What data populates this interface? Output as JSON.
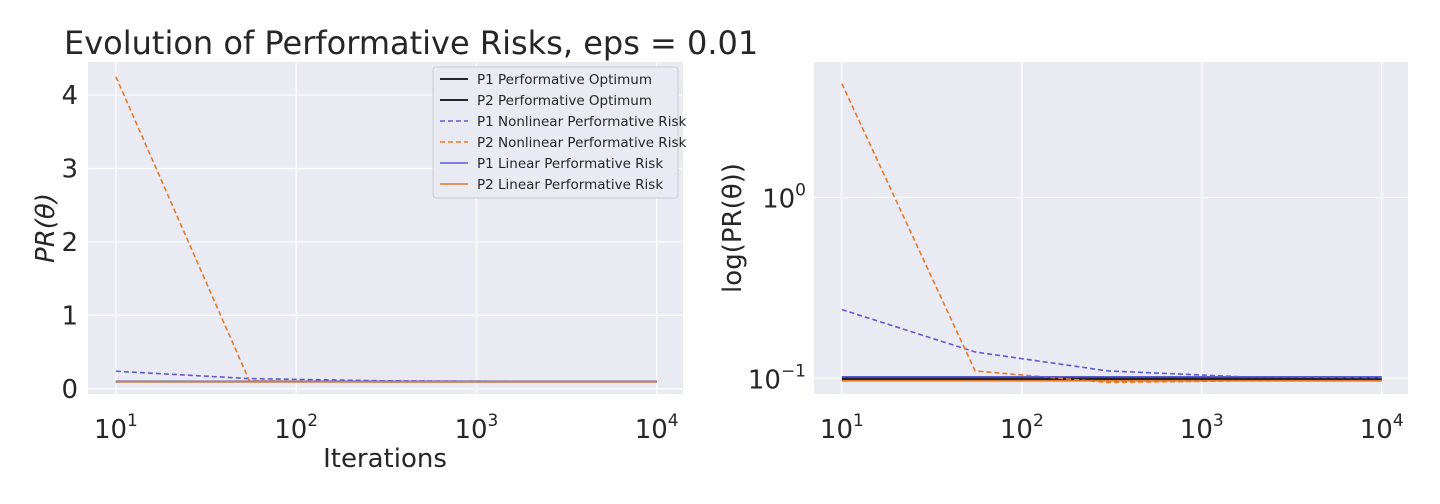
{
  "colors": {
    "optimum": "#262626",
    "p1": "#5b5bd6",
    "p2": "#e07b2e",
    "axes_bg": "#eaeaf2",
    "grid": "#ffffff"
  },
  "chart_data": [
    {
      "type": "line",
      "title": "Evolution of Performative Risks, eps = 0.01",
      "xlabel": "Iterations",
      "ylabel": "PR(θ)",
      "xscale": "log",
      "yscale": "linear",
      "xlim": [
        7,
        14000
      ],
      "ylim": [
        -0.07,
        4.45
      ],
      "xticks": [
        {
          "value": 10,
          "base": "10",
          "exp": "1"
        },
        {
          "value": 100,
          "base": "10",
          "exp": "2"
        },
        {
          "value": 1000,
          "base": "10",
          "exp": "3"
        },
        {
          "value": 10000,
          "base": "10",
          "exp": "4"
        }
      ],
      "yticks": [
        {
          "value": 0,
          "label": "0"
        },
        {
          "value": 1,
          "label": "1"
        },
        {
          "value": 2,
          "label": "2"
        },
        {
          "value": 3,
          "label": "3"
        },
        {
          "value": 4,
          "label": "4"
        }
      ],
      "grid": true,
      "legend_position": "top-right",
      "x": [
        10,
        55,
        300,
        1700,
        10000
      ],
      "series": [
        {
          "name": "P1 Performative Optimum",
          "style": "solid",
          "color_key": "optimum",
          "values": [
            0.1,
            0.1,
            0.1,
            0.1,
            0.1
          ]
        },
        {
          "name": "P2 Performative Optimum",
          "style": "solid",
          "color_key": "optimum",
          "values": [
            0.098,
            0.098,
            0.098,
            0.098,
            0.098
          ]
        },
        {
          "name": "P1 Nonlinear Performative Risk",
          "style": "dashed",
          "color_key": "p1",
          "values": [
            0.24,
            0.14,
            0.11,
            0.102,
            0.101
          ]
        },
        {
          "name": "P2 Nonlinear Performative Risk",
          "style": "dashed",
          "color_key": "p2",
          "values": [
            4.25,
            0.11,
            0.095,
            0.097,
            0.097
          ]
        },
        {
          "name": "P1 Linear Performative Risk",
          "style": "solid",
          "color_key": "p1",
          "values": [
            0.102,
            0.102,
            0.102,
            0.102,
            0.102
          ]
        },
        {
          "name": "P2 Linear Performative Risk",
          "style": "solid",
          "color_key": "p2",
          "values": [
            0.097,
            0.097,
            0.097,
            0.097,
            0.097
          ]
        }
      ]
    },
    {
      "type": "line",
      "title": "",
      "xlabel": "",
      "ylabel": "log(PR(θ))",
      "xscale": "log",
      "yscale": "log",
      "xlim": [
        7,
        14000
      ],
      "ylim": [
        0.082,
        5.6
      ],
      "xticks": [
        {
          "value": 10,
          "base": "10",
          "exp": "1"
        },
        {
          "value": 100,
          "base": "10",
          "exp": "2"
        },
        {
          "value": 1000,
          "base": "10",
          "exp": "3"
        },
        {
          "value": 10000,
          "base": "10",
          "exp": "4"
        }
      ],
      "yticks": [
        {
          "value": 0.1,
          "base": "10",
          "exp": "−1"
        },
        {
          "value": 1,
          "base": "10",
          "exp": "0"
        }
      ],
      "grid": true,
      "x": [
        10,
        55,
        300,
        1700,
        10000
      ],
      "series": [
        {
          "name": "P1 Performative Optimum",
          "style": "solid",
          "color_key": "optimum",
          "values": [
            0.1,
            0.1,
            0.1,
            0.1,
            0.1
          ]
        },
        {
          "name": "P2 Performative Optimum",
          "style": "solid",
          "color_key": "optimum",
          "values": [
            0.098,
            0.098,
            0.098,
            0.098,
            0.098
          ]
        },
        {
          "name": "P1 Nonlinear Performative Risk",
          "style": "dashed",
          "color_key": "p1",
          "values": [
            0.24,
            0.14,
            0.11,
            0.102,
            0.101
          ]
        },
        {
          "name": "P2 Nonlinear Performative Risk",
          "style": "dashed",
          "color_key": "p2",
          "values": [
            4.25,
            0.11,
            0.095,
            0.097,
            0.097
          ]
        },
        {
          "name": "P1 Linear Performative Risk",
          "style": "solid",
          "color_key": "p1",
          "values": [
            0.102,
            0.102,
            0.102,
            0.102,
            0.102
          ]
        },
        {
          "name": "P2 Linear Performative Risk",
          "style": "solid",
          "color_key": "p2",
          "values": [
            0.097,
            0.097,
            0.097,
            0.097,
            0.097
          ]
        }
      ]
    }
  ]
}
